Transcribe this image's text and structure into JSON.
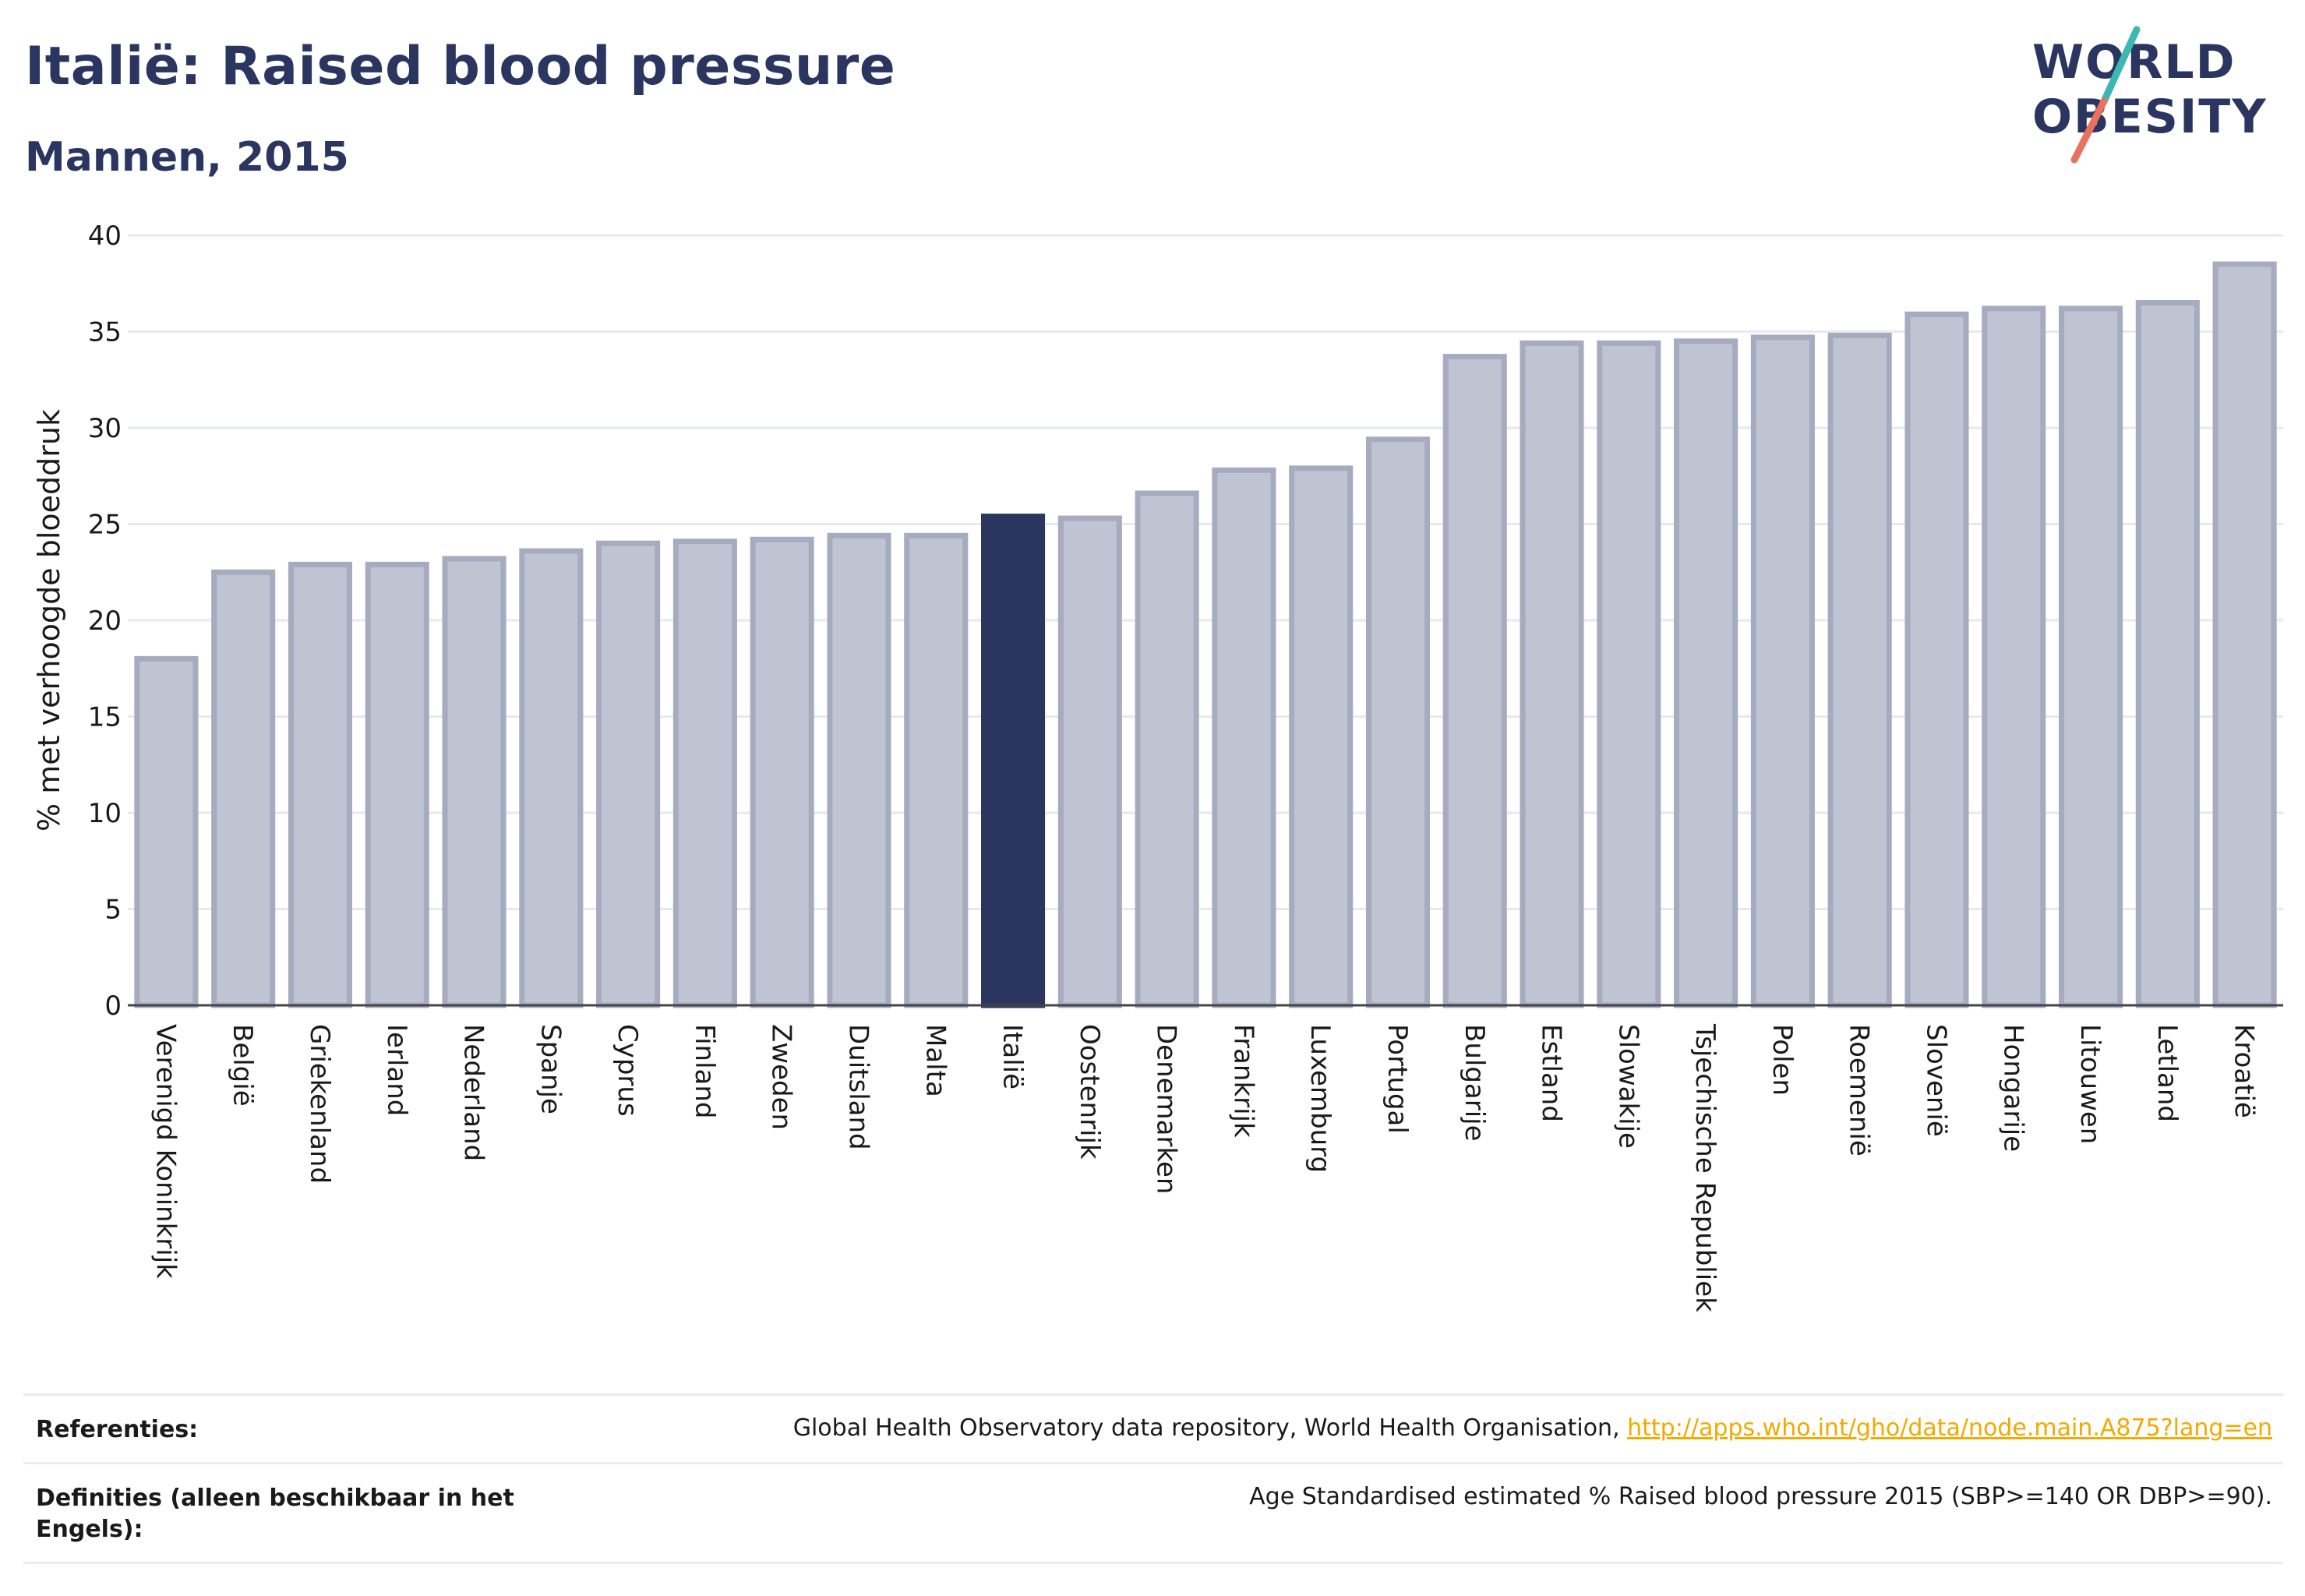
{
  "header": {
    "title": "Italië: Raised blood pressure",
    "subtitle": "Mannen, 2015"
  },
  "logo": {
    "line1": "WORLD",
    "line2": "OBESITY"
  },
  "chart_data": {
    "type": "bar",
    "ylabel": "% met verhoogde bloeddruk",
    "ylim": [
      0,
      40
    ],
    "yticks": [
      0,
      5,
      10,
      15,
      20,
      25,
      30,
      35,
      40
    ],
    "grid": true,
    "highlight": "Italië",
    "categories": [
      "Verenigd Koninkrijk",
      "België",
      "Griekenland",
      "Ierland",
      "Nederland",
      "Spanje",
      "Cyprus",
      "Finland",
      "Zweden",
      "Duitsland",
      "Malta",
      "Italië",
      "Oostenrijk",
      "Denemarken",
      "Frankrijk",
      "Luxemburg",
      "Portugal",
      "Bulgarije",
      "Estland",
      "Slowakije",
      "Tsjechische Republiek",
      "Polen",
      "Roemenië",
      "Slovenië",
      "Hongarije",
      "Litouwen",
      "Letland",
      "Kroatië"
    ],
    "values": [
      18.0,
      22.5,
      22.9,
      22.9,
      23.2,
      23.6,
      24.0,
      24.1,
      24.2,
      24.4,
      24.4,
      25.4,
      25.3,
      26.6,
      27.8,
      27.9,
      29.4,
      33.7,
      34.4,
      34.4,
      34.5,
      34.7,
      34.8,
      35.9,
      36.2,
      36.2,
      36.5,
      38.5
    ]
  },
  "colors": {
    "highlight_bar": "#2a3560",
    "bar_fill": "#c0c3d1",
    "bar_border": "#a7abc0",
    "gridline": "#e6e9f0",
    "zero_line": "#444444",
    "link": "#f2a900",
    "logo_teal": "#3db8b0",
    "logo_coral": "#e8725f"
  },
  "footer": {
    "references_label": "Referenties:",
    "references_text": "Global Health Observatory data repository, World Health Organisation, ",
    "references_link": "http://apps.who.int/gho/data/node.main.A875?lang=en",
    "definitions_label": "Definities (alleen beschikbaar in het Engels):",
    "definitions_text": "Age Standardised estimated % Raised blood pressure 2015 (SBP>=140 OR DBP>=90)."
  }
}
